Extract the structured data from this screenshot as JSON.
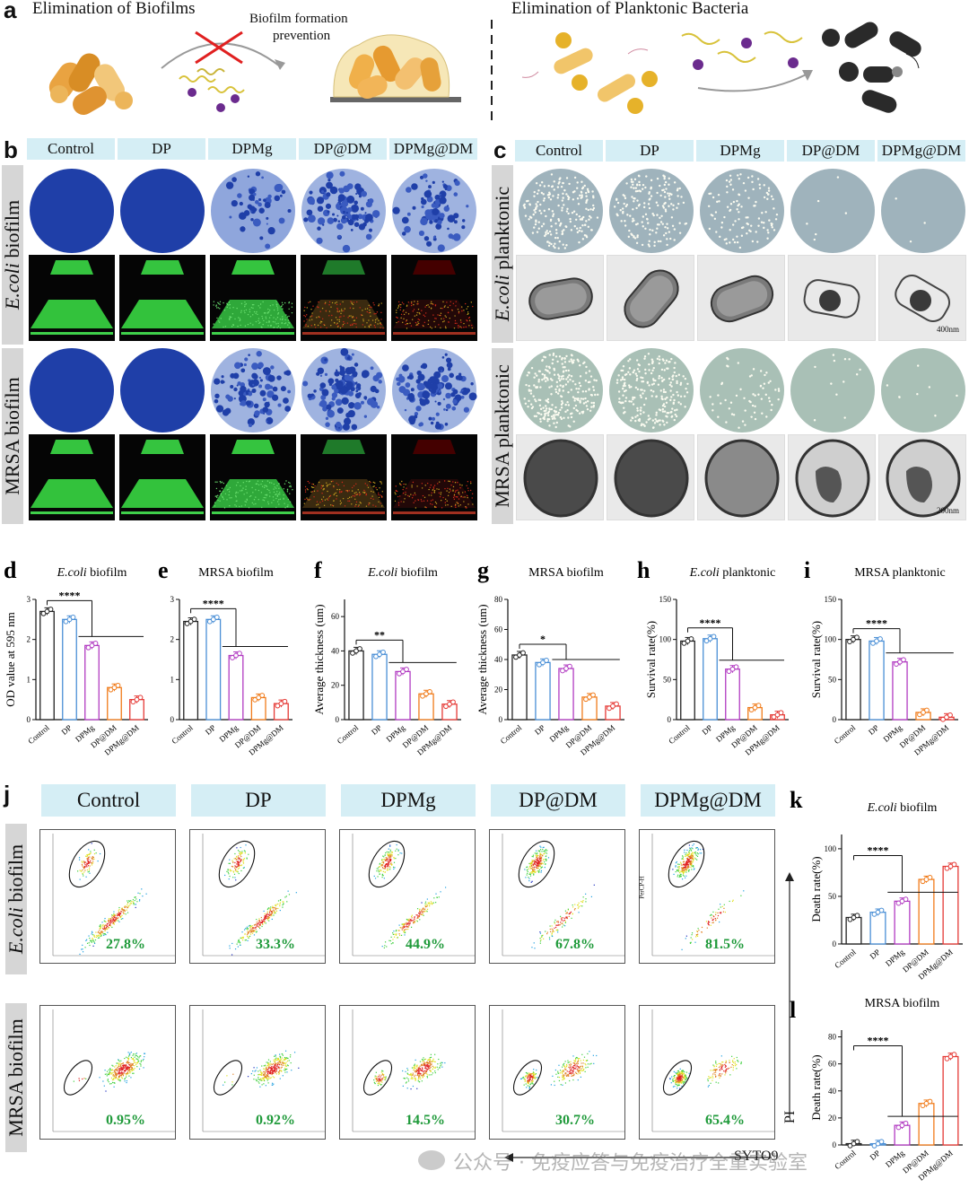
{
  "panel_a": {
    "label": "a",
    "left_title": "Elimination of Biofilms",
    "left_caption_line1": "Biofilm formation",
    "left_caption_line2": "prevention",
    "right_title": "Elimination of Planktonic Bacteria"
  },
  "groups": [
    "Control",
    "DP",
    "DPMg",
    "DP@DM",
    "DPMg@DM"
  ],
  "panel_b": {
    "label": "b",
    "row1_prefix": "E.coli",
    "row1_suffix": " biofilm",
    "row2": "MRSA biofilm"
  },
  "panel_c": {
    "label": "c",
    "row1_prefix": "E.coli",
    "row1_suffix": " planktonic",
    "row2": "MRSA planktonic",
    "scale1": "400nm",
    "scale2": "200nm"
  },
  "bar_labels": [
    "Control",
    "DP",
    "DPMg",
    "DP@DM",
    "DPMg@DM"
  ],
  "chart_data": [
    {
      "panel": "d",
      "type": "bar",
      "title_prefix": "E.coli",
      "title_suffix": " biofilm",
      "ylabel": "OD value at 595 nm",
      "ylim": [
        0,
        3
      ],
      "yticks": [
        0,
        1,
        2,
        3
      ],
      "categories": [
        "Control",
        "DP",
        "DPMg",
        "DP@DM",
        "DPMg@DM"
      ],
      "values": [
        2.7,
        2.5,
        1.85,
        0.8,
        0.5
      ],
      "significance": "****"
    },
    {
      "panel": "e",
      "type": "bar",
      "title_prefix": "",
      "title_suffix": "MRSA biofilm",
      "ylabel": "OD value at 595 nm",
      "ylim": [
        0,
        3
      ],
      "yticks": [
        0,
        1,
        2,
        3
      ],
      "categories": [
        "Control",
        "DP",
        "DPMg",
        "DP@DM",
        "DPMg@DM"
      ],
      "values": [
        2.45,
        2.5,
        1.6,
        0.55,
        0.4
      ],
      "significance": "****"
    },
    {
      "panel": "f",
      "type": "bar",
      "title_prefix": "E.coli",
      "title_suffix": " biofilm",
      "ylabel": "Average thickness (um)",
      "ylim": [
        0,
        70
      ],
      "yticks": [
        0,
        20,
        40,
        60
      ],
      "categories": [
        "Control",
        "DP",
        "DPMg",
        "DP@DM",
        "DPMg@DM"
      ],
      "values": [
        40,
        38,
        28,
        15,
        9
      ],
      "significance": "**"
    },
    {
      "panel": "g",
      "type": "bar",
      "title_prefix": "",
      "title_suffix": "MRSA biofilm",
      "ylabel": "Average thickness (um)",
      "ylim": [
        0,
        80
      ],
      "yticks": [
        0,
        20,
        40,
        60,
        80
      ],
      "categories": [
        "Control",
        "DP",
        "DPMg",
        "DP@DM",
        "DPMg@DM"
      ],
      "values": [
        43,
        38,
        34,
        15,
        9
      ],
      "significance": "*"
    },
    {
      "panel": "h",
      "type": "bar",
      "title_prefix": "E.coli",
      "title_suffix": " planktonic",
      "ylabel": "Survival rate(%)",
      "ylim": [
        0,
        150
      ],
      "yticks": [
        0,
        50,
        100,
        150
      ],
      "categories": [
        "Control",
        "DP",
        "DPMg",
        "DP@DM",
        "DPMg@DM"
      ],
      "values": [
        98,
        101,
        63,
        15,
        6
      ],
      "significance": "****"
    },
    {
      "panel": "i",
      "type": "bar",
      "title_prefix": "",
      "title_suffix": "MRSA planktonic",
      "ylabel": "Survival rate(%)",
      "ylim": [
        0,
        150
      ],
      "yticks": [
        0,
        50,
        100,
        150
      ],
      "categories": [
        "Control",
        "DP",
        "DPMg",
        "DP@DM",
        "DPMg@DM"
      ],
      "values": [
        100,
        98,
        72,
        9,
        3
      ],
      "significance": "****"
    },
    {
      "panel": "k",
      "type": "bar",
      "title_prefix": "E.coli",
      "title_suffix": " biofilm",
      "ylabel": "Death rate(%)",
      "ylim": [
        0,
        115
      ],
      "yticks": [
        0,
        50,
        100
      ],
      "categories": [
        "Control",
        "DP",
        "DPMg",
        "DP@DM",
        "DPMg@DM"
      ],
      "values": [
        27.8,
        33.3,
        44.9,
        67.8,
        81.5
      ],
      "significance": "****"
    },
    {
      "panel": "l",
      "type": "bar",
      "title_prefix": "",
      "title_suffix": "MRSA biofilm",
      "ylabel": "Death rate(%)",
      "ylim": [
        0,
        85
      ],
      "yticks": [
        0,
        20,
        40,
        60,
        80
      ],
      "categories": [
        "Control",
        "DP",
        "DPMg",
        "DP@DM",
        "DPMg@DM"
      ],
      "values": [
        0.95,
        0.92,
        14.5,
        30.7,
        65.4
      ],
      "significance": "****"
    }
  ],
  "panel_j": {
    "label": "j",
    "row1_prefix": "E.coli",
    "row1_suffix": " biofilm",
    "row2": "MRSA biofilm",
    "ecoli_percent": [
      "27.8%",
      "33.3%",
      "44.9%",
      "67.8%",
      "81.5%"
    ],
    "mrsa_percent": [
      "0.95%",
      "0.92%",
      "14.5%",
      "30.7%",
      "65.4%"
    ],
    "x_axis": "SYTO9",
    "y_axis": "PI",
    "small_axis": "PerCP-H"
  },
  "watermark": "公众号 · 免疫应答与免疫治疗全重实验室",
  "colors": {
    "header_bg": "#d5eef5",
    "crystal_violet": "#1f3fa8",
    "live_green": "#2ec43a",
    "bar_colors": [
      "#222222",
      "#4a8fd6",
      "#b23cc2",
      "#f07b1a",
      "#e53935"
    ],
    "percent_green": "#1f9a3a"
  }
}
